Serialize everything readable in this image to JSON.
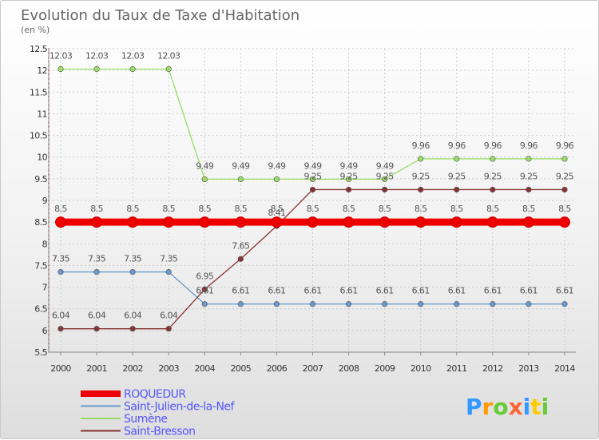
{
  "title": "Evolution du Taux de Taxe d'Habitation",
  "subtitle": "(en %)",
  "logo": {
    "text": "Proxiti",
    "colors": [
      "#3399ff",
      "#ff9900",
      "#66cc33",
      "#ff6633",
      "#3399ff",
      "#ffcc00",
      "#66cc33"
    ]
  },
  "chart_data": {
    "type": "line",
    "x": [
      2000,
      2001,
      2002,
      2003,
      2004,
      2005,
      2006,
      2007,
      2008,
      2009,
      2010,
      2011,
      2012,
      2013,
      2014
    ],
    "ylim": [
      5.5,
      12.5
    ],
    "yticks": [
      "5.5",
      "6",
      "6.5",
      "7",
      "7.5",
      "8",
      "8.5",
      "9",
      "9.5",
      "10",
      "10.5",
      "11",
      "11.5",
      "12",
      "12.5"
    ],
    "ytick_values": [
      5.5,
      6,
      6.5,
      7,
      7.5,
      8,
      8.5,
      9,
      9.5,
      10,
      10.5,
      11,
      11.5,
      12,
      12.5
    ],
    "grid": true,
    "legend_position": "bottom-left",
    "series": [
      {
        "name": "ROQUEDUR",
        "color": "#ee0000",
        "thick": true,
        "values": [
          8.5,
          8.5,
          8.5,
          8.5,
          8.5,
          8.5,
          8.5,
          8.5,
          8.5,
          8.5,
          8.5,
          8.5,
          8.5,
          8.5,
          8.5
        ],
        "labels": [
          "8.5",
          "8.5",
          "8.5",
          "8.5",
          "8.5",
          "8.5",
          "8.5",
          "8.5",
          "8.5",
          "8.5",
          "8.5",
          "8.5",
          "8.5",
          "8.5",
          "8.5"
        ]
      },
      {
        "name": "Saint-Julien-de-la-Nef",
        "color": "#6699cc",
        "thick": false,
        "values": [
          7.35,
          7.35,
          7.35,
          7.35,
          6.61,
          6.61,
          6.61,
          6.61,
          6.61,
          6.61,
          6.61,
          6.61,
          6.61,
          6.61,
          6.61
        ],
        "labels": [
          "7.35",
          "7.35",
          "7.35",
          "7.35",
          "6.61",
          "6.61",
          "6.61",
          "6.61",
          "6.61",
          "6.61",
          "6.61",
          "6.61",
          "6.61",
          "6.61",
          "6.61"
        ]
      },
      {
        "name": "Sumène",
        "color": "#99dd66",
        "thick": false,
        "values": [
          12.03,
          12.03,
          12.03,
          12.03,
          9.49,
          9.49,
          9.49,
          9.49,
          9.49,
          9.49,
          9.96,
          9.96,
          9.96,
          9.96,
          9.96
        ],
        "labels": [
          "12.03",
          "12.03",
          "12.03",
          "12.03",
          "9.49",
          "9.49",
          "9.49",
          "9.49",
          "9.49",
          "9.49",
          "9.96",
          "9.96",
          "9.96",
          "9.96",
          "9.96"
        ]
      },
      {
        "name": "Saint-Bresson",
        "color": "#883333",
        "thick": false,
        "values": [
          6.04,
          6.04,
          6.04,
          6.04,
          6.95,
          7.65,
          8.41,
          9.25,
          9.25,
          9.25,
          9.25,
          9.25,
          9.25,
          9.25,
          9.25
        ],
        "labels": [
          "6.04",
          "6.04",
          "6.04",
          "6.04",
          "6.95",
          "7.65",
          "8.41",
          "9.25",
          "9.25",
          "9.25",
          "9.25",
          "9.25",
          "9.25",
          "9.25",
          "9.25"
        ]
      }
    ]
  }
}
